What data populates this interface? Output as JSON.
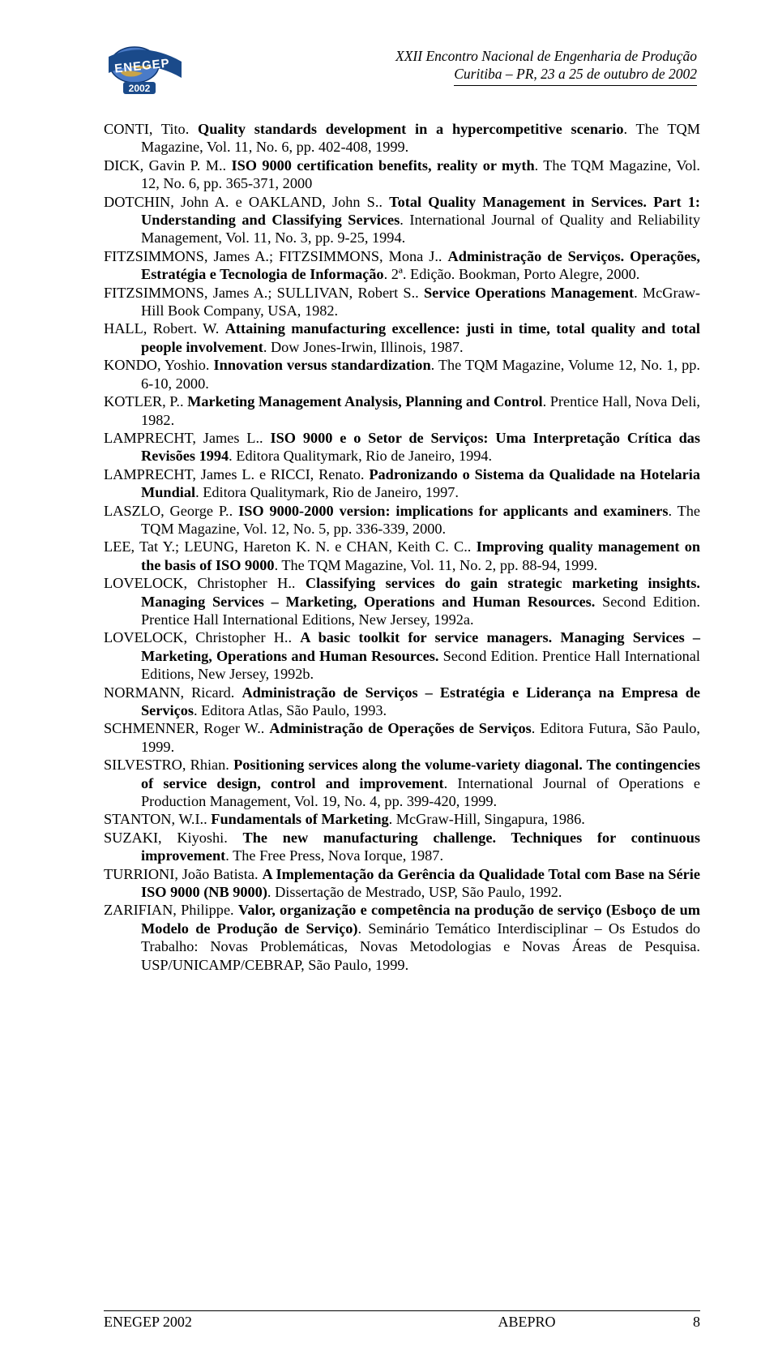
{
  "header": {
    "line1": "XXII Encontro Nacional de Engenharia de Produção",
    "line2": "Curitiba – PR, 23 a 25 de outubro de 2002",
    "logo": {
      "top_text": "ENEGEP",
      "year": "2002",
      "globe_fill": "#4a7bc8",
      "land_fill": "#d6a83a",
      "band_fill": "#1a4a8a",
      "text_fill": "#ffffff",
      "border": "#0d3570"
    }
  },
  "references": [
    "CONTI, Tito. <b>Quality standards development in a hypercompetitive scenario</b>. The TQM Magazine, Vol. 11, No. 6, pp. 402-408, 1999.",
    "DICK, Gavin P. M.. <b>ISO 9000 certification benefits, reality or myth</b>. The TQM Magazine, Vol. 12, No. 6, pp. 365-371, 2000",
    "DOTCHIN, John A. e OAKLAND, John S.. <b>Total Quality Management in Services. Part 1: Understanding and Classifying Services</b>. International Journal of Quality and Reliability Management, Vol. 11, No. 3, pp. 9-25, 1994.",
    "FITZSIMMONS, James A.; FITZSIMMONS, Mona J.. <b>Administração de Serviços. Operações, Estratégia e Tecnologia de Informação</b>. 2ª. Edição. Bookman, Porto Alegre, 2000.",
    "FITZSIMMONS, James A.; SULLIVAN, Robert S.. <b>Service Operations Management</b>. McGraw-Hill Book Company, USA, 1982.",
    "HALL, Robert. W. <b>Attaining manufacturing excellence: justi in time, total quality and total people involvement</b>. Dow Jones-Irwin, Illinois, 1987.",
    "KONDO, Yoshio. <b>Innovation versus standardization</b>. The TQM Magazine, Volume 12, No. 1, pp. 6-10, 2000.",
    "KOTLER, P.. <b>Marketing Management Analysis, Planning and Control</b>. Prentice Hall, Nova Deli, 1982.",
    "LAMPRECHT, James L.. <b>ISO 9000 e o Setor de Serviços: Uma Interpretação Crítica das Revisões 1994</b>. Editora Qualitymark, Rio de Janeiro, 1994.",
    "LAMPRECHT, James L. e RICCI, Renato. <b>Padronizando o Sistema da Qualidade na Hotelaria Mundial</b>. Editora Qualitymark, Rio de Janeiro, 1997.",
    "LASZLO, George P.. <b>ISO 9000-2000 version: implications for applicants and examiners</b>. The TQM Magazine, Vol. 12, No. 5, pp. 336-339, 2000.",
    "LEE, Tat Y.; LEUNG, Hareton K. N. e CHAN, Keith C. C.. <b>Improving quality management on the basis of ISO 9000</b>. The TQM Magazine, Vol. 11, No. 2, pp. 88-94, 1999.",
    "LOVELOCK, Christopher H.. <b>Classifying services do gain strategic marketing insights. Managing Services – Marketing, Operations and Human Resources.</b> Second Edition. Prentice Hall International Editions, New Jersey, 1992a.",
    "LOVELOCK, Christopher H.. <b>A basic toolkit for service managers. Managing Services – Marketing, Operations and Human Resources.</b> Second Edition. Prentice Hall International Editions, New Jersey, 1992b.",
    "NORMANN, Ricard. <b>Administração de Serviços – Estratégia e Liderança na Empresa de Serviços</b>. Editora Atlas, São Paulo, 1993.",
    "SCHMENNER, Roger W.. <b>Administração de Operações de Serviços</b>. Editora Futura, São Paulo, 1999.",
    "SILVESTRO, Rhian. <b>Positioning services along the volume-variety diagonal. The contingencies of service design, control and improvement</b>. International Journal of Operations e Production Management, Vol. 19, No. 4, pp. 399-420, 1999.",
    "STANTON, W.I.. <b>Fundamentals of Marketing</b>. McGraw-Hill, Singapura, 1986.",
    "SUZAKI, Kiyoshi. <b>The new manufacturing challenge. Techniques for continuous improvement</b>. The Free Press, Nova Iorque, 1987.",
    "TURRIONI, João Batista. <b>A Implementação da Gerência da Qualidade Total com Base na Série ISO 9000 (NB 9000)</b>. Dissertação de Mestrado, USP, São Paulo, 1992.",
    "ZARIFIAN, Philippe. <b>Valor, organização e competência na produção de serviço (Esboço de um Modelo de Produção de Serviço)</b>. Seminário Temático Interdisciplinar – Os Estudos do Trabalho: Novas Problemáticas, Novas Metodologias e Novas Áreas de Pesquisa. USP/UNICAMP/CEBRAP, São Paulo, 1999."
  ],
  "footer": {
    "left": "ENEGEP 2002",
    "center": "ABEPRO",
    "page": "8"
  }
}
